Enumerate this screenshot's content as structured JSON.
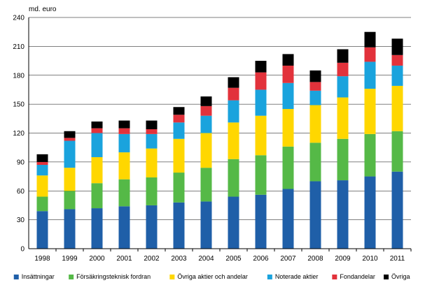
{
  "chart_data": {
    "type": "bar",
    "stacked": true,
    "unit": "md. euro",
    "categories": [
      "1998",
      "1999",
      "2000",
      "2001",
      "2002",
      "2003",
      "2004",
      "2005",
      "2006",
      "2007",
      "2008",
      "2009",
      "2010",
      "2011"
    ],
    "ylim": [
      0,
      240
    ],
    "yticks": [
      0,
      30,
      60,
      90,
      120,
      150,
      180,
      210,
      240
    ],
    "grid": true,
    "legend_position": "bottom",
    "series": [
      {
        "name": "Insättningar",
        "color": "#1f5fa8",
        "values": [
          39,
          41,
          42,
          44,
          45,
          48,
          49,
          54,
          56,
          62,
          70,
          71,
          75,
          80
        ]
      },
      {
        "name": "Försäkringsteknisk fordran",
        "color": "#55b947",
        "values": [
          15,
          19,
          26,
          28,
          29,
          31,
          35,
          39,
          41,
          44,
          40,
          43,
          44,
          42
        ]
      },
      {
        "name": "Övriga aktier och andelar",
        "color": "#ffd700",
        "values": [
          22,
          24,
          27,
          28,
          30,
          35,
          36,
          38,
          41,
          39,
          39,
          43,
          47,
          47
        ]
      },
      {
        "name": "Noterade aktier",
        "color": "#1aa3dd",
        "values": [
          11,
          28,
          25,
          19,
          15,
          17,
          18,
          23,
          27,
          27,
          15,
          22,
          28,
          21
        ]
      },
      {
        "name": "Fondandelar",
        "color": "#e2323b",
        "values": [
          3,
          3,
          5,
          6,
          5,
          8,
          10,
          13,
          18,
          18,
          9,
          14,
          15,
          11
        ]
      },
      {
        "name": "Övriga",
        "color": "#000000",
        "values": [
          8,
          7,
          7,
          8,
          9,
          8,
          10,
          11,
          12,
          12,
          12,
          14,
          16,
          17
        ]
      }
    ]
  }
}
